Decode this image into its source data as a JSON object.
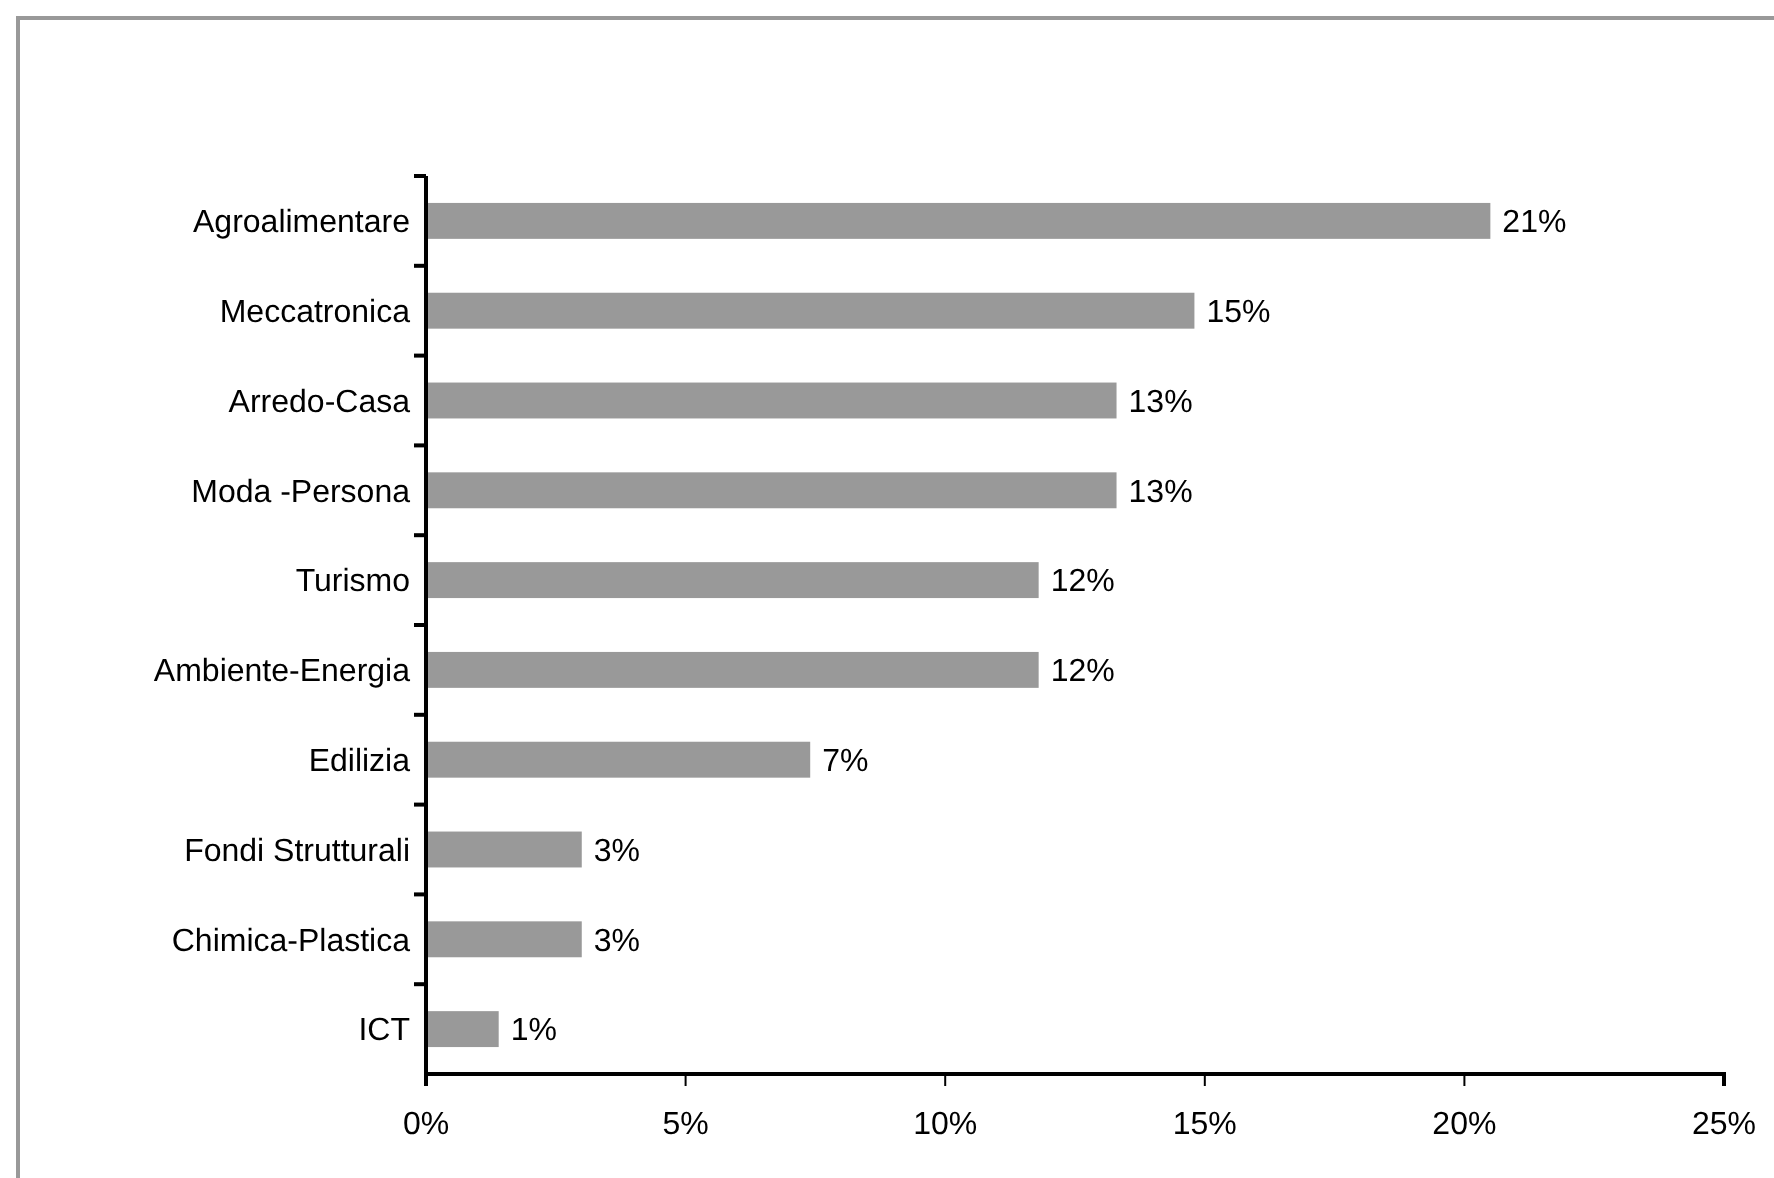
{
  "chart_data": {
    "type": "bar",
    "orientation": "horizontal",
    "categories": [
      "Agroalimentare",
      "Meccatronica",
      "Arredo-Casa",
      "Moda -Persona",
      "Turismo",
      "Ambiente-Energia",
      "Edilizia",
      "Fondi Strutturali",
      "Chimica-Plastica",
      "ICT"
    ],
    "values": [
      20.5,
      14.8,
      13.3,
      13.3,
      11.8,
      11.8,
      7.4,
      3.0,
      3.0,
      1.4
    ],
    "value_labels": [
      "21%",
      "15%",
      "13%",
      "13%",
      "12%",
      "12%",
      "7%",
      "3%",
      "3%",
      "1%"
    ],
    "color": "#999999",
    "xlim": [
      0,
      25
    ],
    "xticks": [
      {
        "value": 0,
        "label": "0%"
      },
      {
        "value": 5,
        "label": "5%"
      },
      {
        "value": 10,
        "label": "10%"
      },
      {
        "value": 15,
        "label": "15%"
      },
      {
        "value": 20,
        "label": "20%"
      },
      {
        "value": 25,
        "label": "25%"
      }
    ],
    "grid": false
  }
}
